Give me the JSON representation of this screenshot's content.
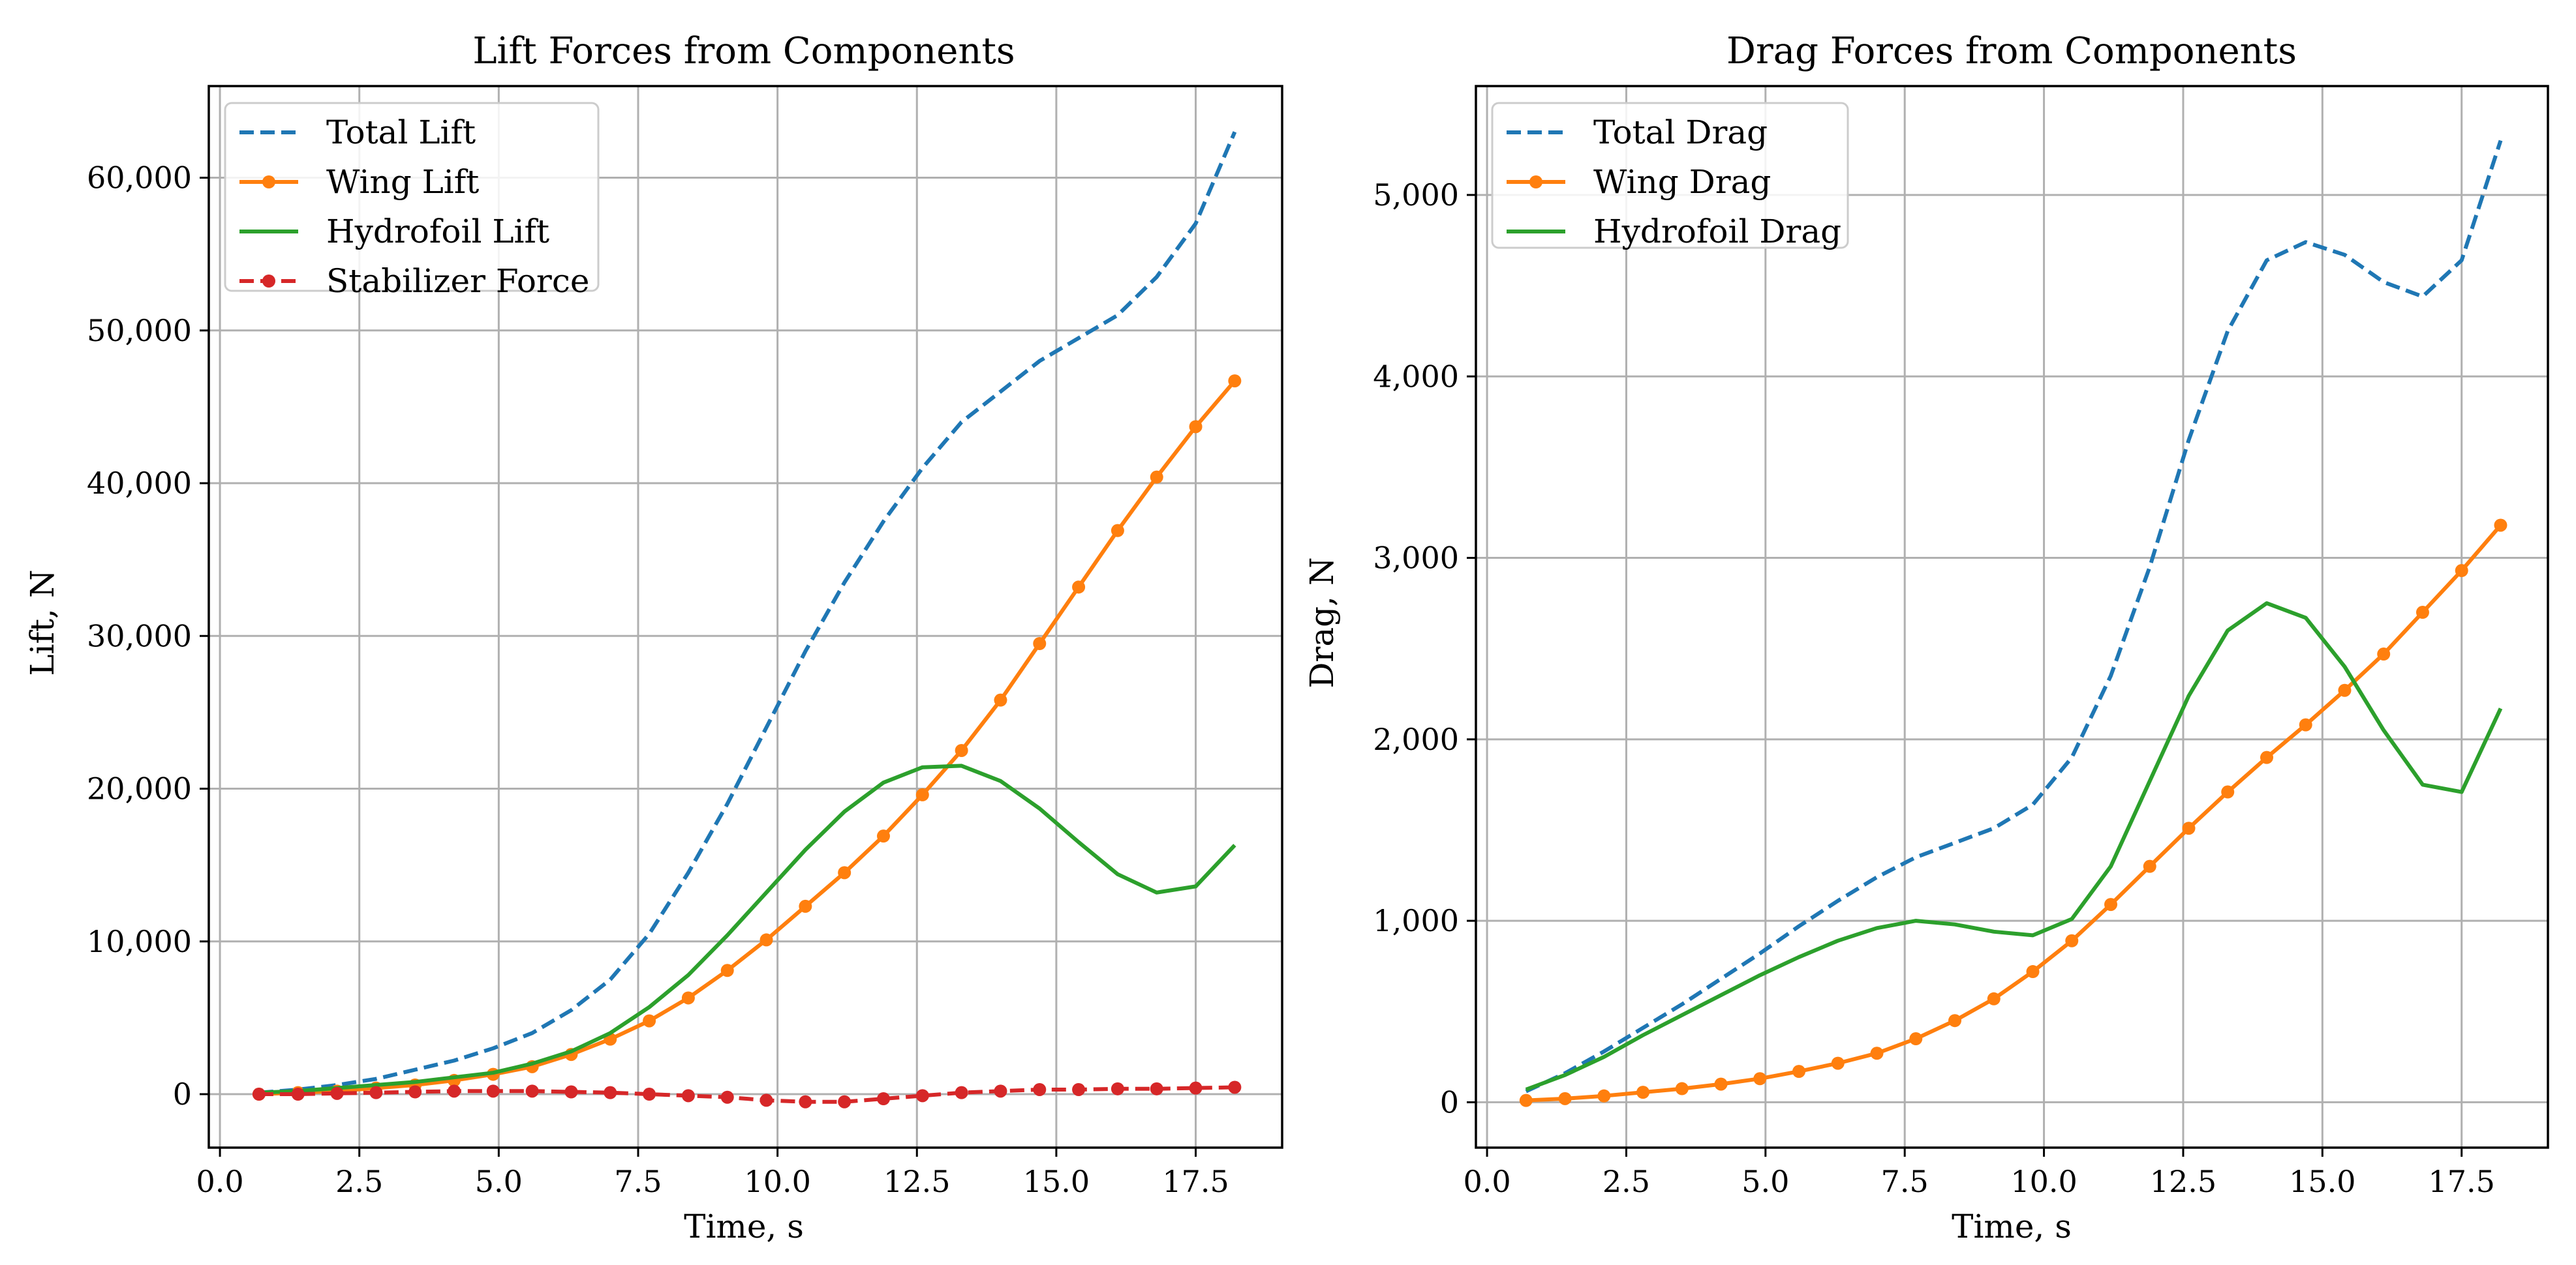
{
  "colors": {
    "blue": "#1f77b4",
    "orange": "#ff7f0e",
    "green": "#2ca02c",
    "red": "#d62728",
    "grid": "#b0b0b0",
    "legend_border": "#cccccc"
  },
  "chart_data": [
    {
      "type": "line",
      "title": "Lift Forces from Components",
      "xlabel": "Time, s",
      "ylabel": "Lift, N",
      "xlim": [
        -0.2,
        19.05
      ],
      "ylim": [
        -3500,
        66000
      ],
      "xticks": [
        0,
        2.5,
        5,
        7.5,
        10,
        12.5,
        15,
        17.5
      ],
      "xtick_labels": [
        "0.0",
        "2.5",
        "5.0",
        "7.5",
        "10.0",
        "12.5",
        "15.0",
        "17.5"
      ],
      "yticks": [
        0,
        10000,
        20000,
        30000,
        40000,
        50000,
        60000
      ],
      "ytick_labels": [
        "0",
        "10,000",
        "20,000",
        "30,000",
        "40,000",
        "50,000",
        "60,000"
      ],
      "grid": true,
      "legend_position": "upper-left",
      "x": [
        0.7,
        1.4,
        2.1,
        2.8,
        3.5,
        4.2,
        4.9,
        5.6,
        6.3,
        7.0,
        7.7,
        8.4,
        9.1,
        9.8,
        10.5,
        11.2,
        11.9,
        12.6,
        13.3,
        14.0,
        14.7,
        15.4,
        16.1,
        16.8,
        17.5,
        18.2
      ],
      "series": [
        {
          "name": "Total Lift",
          "color_key": "blue",
          "style": "dashed",
          "marker": false,
          "values": [
            100,
            300,
            600,
            1000,
            1600,
            2200,
            3000,
            4000,
            5500,
            7500,
            10500,
            14500,
            19000,
            24000,
            29000,
            33500,
            37500,
            41000,
            44000,
            46000,
            48000,
            49500,
            51000,
            53500,
            57000,
            63000
          ]
        },
        {
          "name": "Wing Lift",
          "color_key": "orange",
          "style": "solid",
          "marker": true,
          "values": [
            0,
            100,
            200,
            400,
            600,
            900,
            1300,
            1800,
            2600,
            3600,
            4800,
            6300,
            8100,
            10100,
            12300,
            14500,
            16900,
            19600,
            22500,
            25800,
            29500,
            33200,
            36900,
            40400,
            43700,
            46700
          ]
        },
        {
          "name": "Hydrofoil Lift",
          "color_key": "green",
          "style": "solid",
          "marker": false,
          "values": [
            100,
            200,
            400,
            600,
            800,
            1100,
            1400,
            2000,
            2800,
            4000,
            5700,
            7800,
            10400,
            13200,
            16000,
            18500,
            20400,
            21400,
            21500,
            20500,
            18700,
            16500,
            14400,
            13200,
            13600,
            16300
          ]
        },
        {
          "name": "Stabilizer Force",
          "color_key": "red",
          "style": "dashed",
          "marker": true,
          "values": [
            0,
            0,
            50,
            100,
            150,
            200,
            200,
            200,
            150,
            100,
            0,
            -100,
            -200,
            -400,
            -500,
            -500,
            -300,
            -100,
            100,
            200,
            300,
            300,
            350,
            350,
            400,
            450
          ]
        }
      ]
    },
    {
      "type": "line",
      "title": "Drag Forces from Components",
      "xlabel": "Time, s",
      "ylabel": "Drag, N",
      "xlim": [
        -0.2,
        19.05
      ],
      "ylim": [
        -250,
        5600
      ],
      "xticks": [
        0,
        2.5,
        5,
        7.5,
        10,
        12.5,
        15,
        17.5
      ],
      "xtick_labels": [
        "0.0",
        "2.5",
        "5.0",
        "7.5",
        "10.0",
        "12.5",
        "15.0",
        "17.5"
      ],
      "yticks": [
        0,
        1000,
        2000,
        3000,
        4000,
        5000
      ],
      "ytick_labels": [
        "0",
        "1,000",
        "2,000",
        "3,000",
        "4,000",
        "5,000"
      ],
      "grid": true,
      "legend_position": "upper-left",
      "x": [
        0.7,
        1.4,
        2.1,
        2.8,
        3.5,
        4.2,
        4.9,
        5.6,
        6.3,
        7.0,
        7.7,
        8.4,
        9.1,
        9.8,
        10.5,
        11.2,
        11.9,
        12.6,
        13.3,
        14.0,
        14.7,
        15.4,
        16.1,
        16.8,
        17.5,
        18.2
      ],
      "series": [
        {
          "name": "Total Drag",
          "color_key": "blue",
          "style": "dashed",
          "marker": false,
          "values": [
            60,
            160,
            280,
            410,
            540,
            680,
            820,
            970,
            1110,
            1240,
            1350,
            1430,
            1510,
            1640,
            1900,
            2350,
            2950,
            3650,
            4250,
            4640,
            4740,
            4670,
            4520,
            4440,
            4640,
            5300
          ]
        },
        {
          "name": "Wing Drag",
          "color_key": "orange",
          "style": "solid",
          "marker": true,
          "values": [
            10,
            20,
            35,
            55,
            75,
            100,
            130,
            170,
            215,
            270,
            350,
            450,
            570,
            720,
            890,
            1090,
            1300,
            1510,
            1710,
            1900,
            2080,
            2270,
            2470,
            2700,
            2930,
            3180
          ]
        },
        {
          "name": "Hydrofoil Drag",
          "color_key": "green",
          "style": "solid",
          "marker": false,
          "values": [
            70,
            150,
            250,
            370,
            480,
            590,
            700,
            800,
            890,
            960,
            1000,
            980,
            940,
            920,
            1010,
            1300,
            1770,
            2240,
            2600,
            2750,
            2670,
            2400,
            2050,
            1750,
            1710,
            2170
          ]
        }
      ]
    }
  ]
}
